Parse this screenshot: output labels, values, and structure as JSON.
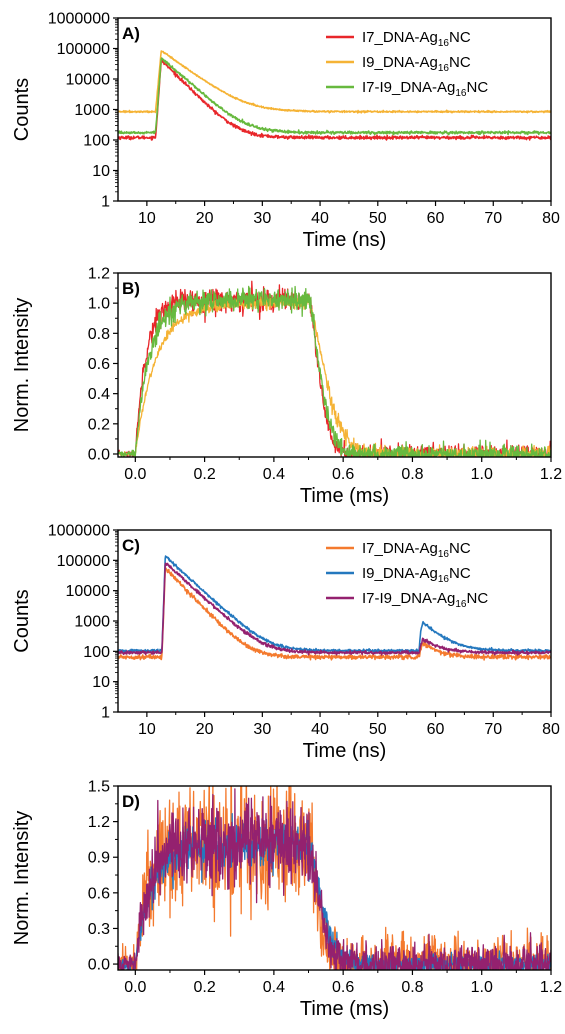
{
  "chart_data": [
    {
      "panel_label": "A)",
      "type": "line",
      "xlabel": "Time (ns)",
      "ylabel": "Counts",
      "xlim": [
        5,
        80
      ],
      "ylim": [
        1,
        1000000
      ],
      "yscale": "log",
      "xticks": [
        "10",
        "20",
        "30",
        "40",
        "50",
        "60",
        "70",
        "80"
      ],
      "yticks": [
        "1",
        "10",
        "100",
        "1000",
        "10000",
        "100000",
        "1000000"
      ],
      "legend_position": "top-right",
      "series": [
        {
          "name": "I7_DNA-Ag16NC",
          "name_main": "I7_DNA-Ag",
          "name_sub": "16",
          "name_end": "NC",
          "color": "#e8262a",
          "model": {
            "base": 120,
            "rise": 11.5,
            "peak_t": 12.5,
            "peak": 42000,
            "tau": 2.3,
            "noise": 0.06
          },
          "values": [
            [
              5,
              120
            ],
            [
              11,
              120
            ],
            [
              12.5,
              42000
            ],
            [
              15,
              12000
            ],
            [
              20,
              1200
            ],
            [
              25,
              200
            ],
            [
              30,
              125
            ],
            [
              80,
              120
            ]
          ]
        },
        {
          "name": "I9_DNA-Ag16NC",
          "name_main": "I9_DNA-Ag",
          "name_sub": "16",
          "name_end": "NC",
          "color": "#f5b335",
          "model": {
            "base": 850,
            "rise": 11.5,
            "peak_t": 12.5,
            "peak": 85000,
            "tau": 3.2,
            "noise": 0.03
          },
          "values": [
            [
              5,
              850
            ],
            [
              11,
              850
            ],
            [
              12.5,
              85000
            ],
            [
              15,
              40000
            ],
            [
              20,
              8000
            ],
            [
              25,
              2200
            ],
            [
              30,
              1050
            ],
            [
              80,
              850
            ]
          ]
        },
        {
          "name": "I7-I9_DNA-Ag16NC",
          "name_main": "I7-I9_DNA-Ag",
          "name_sub": "16",
          "name_end": "NC",
          "color": "#67b93e",
          "model": {
            "base": 175,
            "rise": 11.5,
            "peak_t": 12.5,
            "peak": 50000,
            "tau": 2.6,
            "noise": 0.05
          },
          "values": [
            [
              5,
              175
            ],
            [
              11,
              175
            ],
            [
              12.5,
              50000
            ],
            [
              15,
              16000
            ],
            [
              20,
              2000
            ],
            [
              25,
              380
            ],
            [
              30,
              190
            ],
            [
              80,
              175
            ]
          ]
        }
      ]
    },
    {
      "panel_label": "B)",
      "type": "line",
      "xlabel": "Time (ms)",
      "ylabel": "Norm. Intensity",
      "xlim": [
        -0.05,
        1.2
      ],
      "ylim": [
        -0.02,
        1.2
      ],
      "xticks": [
        "0.0",
        "0.2",
        "0.4",
        "0.6",
        "0.8",
        "1.0",
        "1.2"
      ],
      "yticks": [
        "0.0",
        "0.2",
        "0.4",
        "0.6",
        "0.8",
        "1.0",
        "1.2"
      ],
      "series": [
        {
          "name": "I7_DNA-Ag16NC",
          "color": "#e8262a",
          "model": {
            "tau_rise": 0.03,
            "tau_fall": 0.04,
            "plateau": 1.02,
            "noise": 0.03
          },
          "values": [
            [
              0,
              0
            ],
            [
              0.05,
              0.82
            ],
            [
              0.1,
              0.97
            ],
            [
              0.2,
              1.0
            ],
            [
              0.4,
              1.02
            ],
            [
              0.5,
              1.02
            ],
            [
              0.55,
              0.3
            ],
            [
              0.6,
              0.08
            ],
            [
              0.7,
              0.0
            ],
            [
              1.2,
              0.0
            ]
          ]
        },
        {
          "name": "I9_DNA-Ag16NC",
          "color": "#f5b335",
          "model": {
            "tau_rise": 0.06,
            "tau_fall": 0.065,
            "plateau": 1.0,
            "noise": 0.012
          },
          "values": [
            [
              0,
              0
            ],
            [
              0.05,
              0.58
            ],
            [
              0.1,
              0.81
            ],
            [
              0.2,
              0.96
            ],
            [
              0.4,
              1.0
            ],
            [
              0.5,
              1.0
            ],
            [
              0.55,
              0.48
            ],
            [
              0.6,
              0.25
            ],
            [
              0.7,
              0.06
            ],
            [
              0.8,
              0.01
            ],
            [
              1.2,
              0.0
            ]
          ]
        },
        {
          "name": "I7-I9_DNA-Ag16NC",
          "color": "#67b93e",
          "model": {
            "tau_rise": 0.04,
            "tau_fall": 0.045,
            "plateau": 1.02,
            "noise": 0.03
          },
          "values": [
            [
              0,
              0
            ],
            [
              0.05,
              0.72
            ],
            [
              0.1,
              0.92
            ],
            [
              0.2,
              1.0
            ],
            [
              0.4,
              1.02
            ],
            [
              0.5,
              1.02
            ],
            [
              0.55,
              0.33
            ],
            [
              0.6,
              0.11
            ],
            [
              0.7,
              0.01
            ],
            [
              1.2,
              0.0
            ]
          ]
        }
      ]
    },
    {
      "panel_label": "C)",
      "type": "line",
      "xlabel": "Time (ns)",
      "ylabel": "Counts",
      "xlim": [
        5,
        80
      ],
      "ylim": [
        1,
        1000000
      ],
      "yscale": "log",
      "xticks": [
        "10",
        "20",
        "30",
        "40",
        "50",
        "60",
        "70",
        "80"
      ],
      "yticks": [
        "1",
        "10",
        "100",
        "1000",
        "10000",
        "100000",
        "1000000"
      ],
      "legend_position": "top-right",
      "series": [
        {
          "name": "I7_DNA-Ag16NC",
          "name_main": "I7_DNA-Ag",
          "name_sub": "16",
          "name_end": "NC",
          "color": "#f47a2e",
          "model": {
            "base": 65,
            "rise": 12.6,
            "peak_t": 13.2,
            "peak": 55000,
            "tau": 2.2,
            "noise": 0.08,
            "echo_t": 57.8,
            "echo": 190
          },
          "values": [
            [
              5,
              65
            ],
            [
              12,
              65
            ],
            [
              13.2,
              55000
            ],
            [
              20,
              2000
            ],
            [
              30,
              120
            ],
            [
              40,
              70
            ],
            [
              57.8,
              190
            ],
            [
              65,
              75
            ],
            [
              80,
              65
            ]
          ]
        },
        {
          "name": "I9_DNA-Ag16NC",
          "name_main": "I9_DNA-Ag",
          "name_sub": "16",
          "name_end": "NC",
          "color": "#2478be",
          "model": {
            "base": 105,
            "rise": 12.6,
            "peak_t": 13.2,
            "peak": 135000,
            "tau": 2.5,
            "noise": 0.05,
            "echo_t": 57.8,
            "echo": 900
          },
          "values": [
            [
              5,
              105
            ],
            [
              12,
              105
            ],
            [
              13.2,
              135000
            ],
            [
              20,
              6000
            ],
            [
              30,
              250
            ],
            [
              40,
              110
            ],
            [
              57.8,
              900
            ],
            [
              65,
              130
            ],
            [
              80,
              105
            ]
          ]
        },
        {
          "name": "I7-I9_DNA-Ag16NC",
          "name_main": "I7-I9_DNA-Ag",
          "name_sub": "16",
          "name_end": "NC",
          "color": "#94216f",
          "model": {
            "base": 90,
            "rise": 12.6,
            "peak_t": 13.2,
            "peak": 85000,
            "tau": 2.5,
            "noise": 0.06,
            "echo_t": 57.8,
            "echo": 250
          },
          "values": [
            [
              5,
              90
            ],
            [
              12,
              90
            ],
            [
              13.2,
              85000
            ],
            [
              20,
              4000
            ],
            [
              30,
              200
            ],
            [
              40,
              95
            ],
            [
              57.8,
              250
            ],
            [
              65,
              100
            ],
            [
              80,
              90
            ]
          ]
        }
      ]
    },
    {
      "panel_label": "D)",
      "type": "line",
      "xlabel": "Time (ms)",
      "ylabel": "Norm. Intensity",
      "xlim": [
        -0.05,
        1.2
      ],
      "ylim": [
        -0.05,
        1.5
      ],
      "xticks": [
        "0.0",
        "0.2",
        "0.4",
        "0.6",
        "0.8",
        "1.0",
        "1.2"
      ],
      "yticks": [
        "0.0",
        "0.3",
        "0.6",
        "0.9",
        "1.2",
        "1.5"
      ],
      "series": [
        {
          "name": "I7_DNA-Ag16NC",
          "color": "#f47a2e",
          "model": {
            "tau_rise": 0.035,
            "tau_fall": 0.035,
            "plateau": 1.02,
            "noise": 0.2,
            "tail": 0.05
          },
          "values": [
            [
              0,
              0
            ],
            [
              0.05,
              0.75
            ],
            [
              0.1,
              0.95
            ],
            [
              0.3,
              1.02
            ],
            [
              0.5,
              1.02
            ],
            [
              0.55,
              0.3
            ],
            [
              0.6,
              0.05
            ],
            [
              0.8,
              0.03
            ],
            [
              1.2,
              0.03
            ]
          ]
        },
        {
          "name": "I9_DNA-Ag16NC",
          "color": "#2478be",
          "model": {
            "tau_rise": 0.045,
            "tau_fall": 0.05,
            "plateau": 1.0,
            "noise": 0.07,
            "tail": 0.02
          },
          "values": [
            [
              0,
              0
            ],
            [
              0.05,
              0.66
            ],
            [
              0.1,
              0.89
            ],
            [
              0.3,
              1.0
            ],
            [
              0.5,
              1.0
            ],
            [
              0.55,
              0.37
            ],
            [
              0.6,
              0.15
            ],
            [
              0.7,
              0.04
            ],
            [
              1.2,
              0.02
            ]
          ]
        },
        {
          "name": "I7-I9_DNA-Ag16NC",
          "color": "#94216f",
          "model": {
            "tau_rise": 0.04,
            "tau_fall": 0.04,
            "plateau": 1.02,
            "noise": 0.13,
            "tail": 0.04
          },
          "values": [
            [
              0,
              0
            ],
            [
              0.05,
              0.71
            ],
            [
              0.1,
              0.93
            ],
            [
              0.3,
              1.02
            ],
            [
              0.5,
              1.02
            ],
            [
              0.55,
              0.3
            ],
            [
              0.6,
              0.1
            ],
            [
              0.8,
              0.04
            ],
            [
              1.2,
              0.04
            ]
          ]
        }
      ]
    }
  ]
}
